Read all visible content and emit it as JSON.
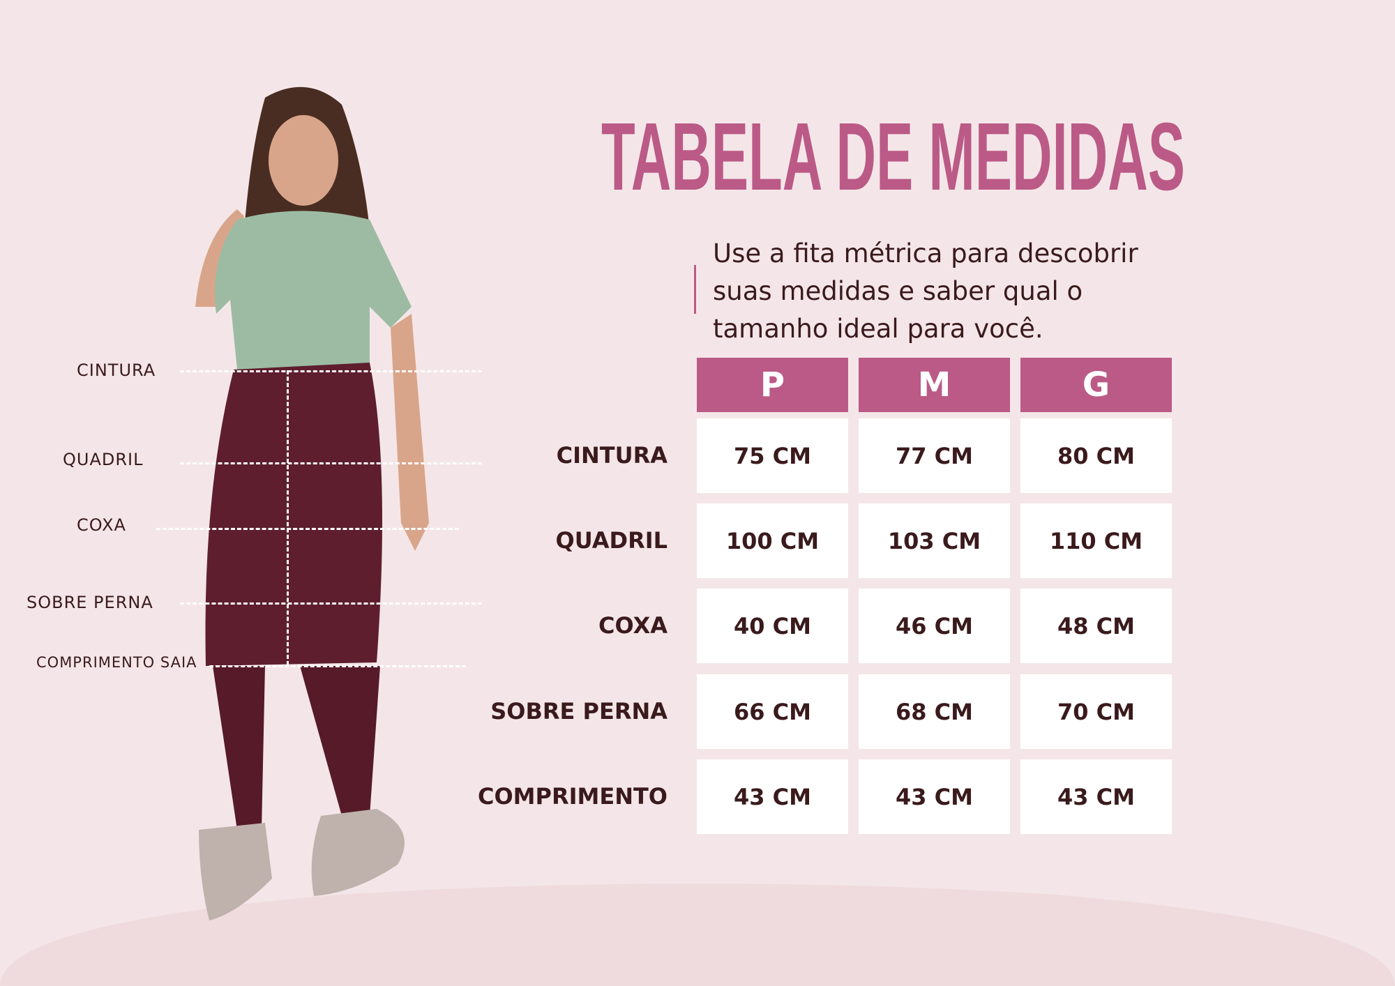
{
  "title": "TABELA DE MEDIDAS",
  "subtitle_lines": [
    "Use a fita métrica para descobrir",
    "suas medidas e saber qual o",
    "tamanho ideal para você."
  ],
  "sizes": [
    "P",
    "M",
    "G"
  ],
  "rows": [
    {
      "label": "CINTURA",
      "values": [
        "75 CM",
        "77 CM",
        "80 CM"
      ]
    },
    {
      "label": "QUADRIL",
      "values": [
        "100 CM",
        "103 CM",
        "110 CM"
      ]
    },
    {
      "label": "COXA",
      "values": [
        "40 CM",
        "46 CM",
        "48 CM"
      ]
    },
    {
      "label": "SOBRE PERNA",
      "values": [
        "66 CM",
        "68 CM",
        "70 CM"
      ]
    },
    {
      "label": "COMPRIMENTO",
      "values": [
        "43 CM",
        "43 CM",
        "43 CM"
      ]
    }
  ],
  "measure_labels": [
    "CINTURA",
    "QUADRIL",
    "COXA",
    "SOBRE PERNA",
    "COMPRIMENTO SAIA"
  ],
  "colors": {
    "accent": "#bb5a86",
    "background": "#f4e6e8",
    "text": "#3a1a1c",
    "skirt": "#5e1e2e",
    "shirt": "#9dbba3"
  }
}
